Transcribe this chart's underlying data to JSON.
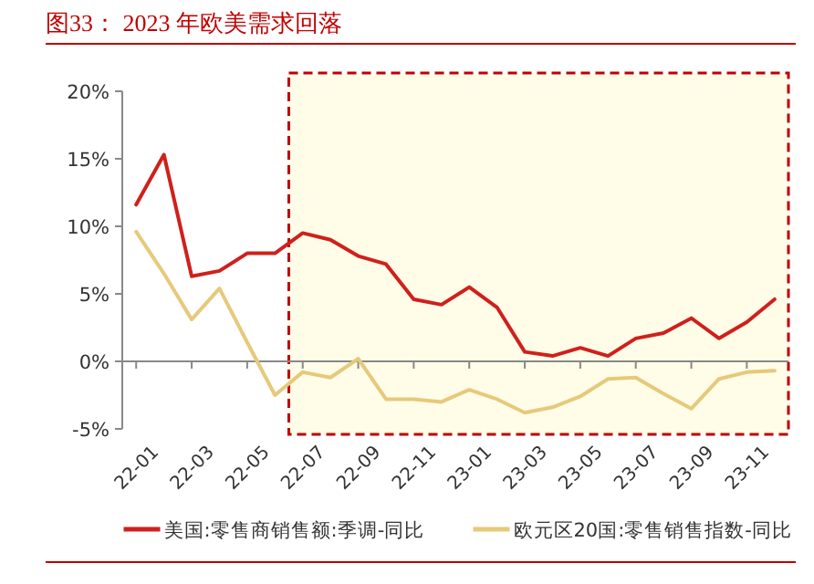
{
  "chart_data": {
    "type": "line",
    "title": "图33：  2023 年欧美需求回落",
    "x": [
      "2022-01",
      "2022-02",
      "2022-03",
      "2022-04",
      "2022-05",
      "2022-06",
      "2022-07",
      "2022-08",
      "2022-09",
      "2022-10",
      "2022-11",
      "2022-12",
      "2023-01",
      "2023-02",
      "2023-03",
      "2023-04",
      "2023-05",
      "2023-06",
      "2023-07",
      "2023-08",
      "2023-09",
      "2023-10",
      "2023-11",
      "2023-12"
    ],
    "xlim": [
      "2021-12-16",
      "2023-12-16"
    ],
    "xticks": [
      {
        "value": "2022-01",
        "label": "22-01"
      },
      {
        "value": "2022-03",
        "label": "22-03"
      },
      {
        "value": "2022-05",
        "label": "22-05"
      },
      {
        "value": "2022-07",
        "label": "22-07"
      },
      {
        "value": "2022-09",
        "label": "22-09"
      },
      {
        "value": "2022-11",
        "label": "22-11"
      },
      {
        "value": "2023-01",
        "label": "23-01"
      },
      {
        "value": "2023-03",
        "label": "23-03"
      },
      {
        "value": "2023-05",
        "label": "23-05"
      },
      {
        "value": "2023-07",
        "label": "23-07"
      },
      {
        "value": "2023-09",
        "label": "23-09"
      },
      {
        "value": "2023-11",
        "label": "23-11"
      }
    ],
    "ylim": [
      -5,
      20
    ],
    "yticks": [
      {
        "value": -5,
        "label": "-5%"
      },
      {
        "value": 0,
        "label": "0%"
      },
      {
        "value": 5,
        "label": "5%"
      },
      {
        "value": 10,
        "label": "10%"
      },
      {
        "value": 15,
        "label": "15%"
      },
      {
        "value": 20,
        "label": "20%"
      }
    ],
    "series": [
      {
        "name": "美国:零售商销售额:季调-同比",
        "color": "#d0201c",
        "values": [
          11.6,
          15.3,
          6.3,
          6.7,
          8.0,
          8.0,
          9.5,
          9.0,
          7.8,
          7.2,
          4.6,
          4.2,
          5.5,
          4.0,
          0.7,
          0.4,
          1.0,
          0.4,
          1.7,
          2.1,
          3.2,
          1.7,
          2.9,
          4.6
        ]
      },
      {
        "name": "欧元区20国:零售销售指数-同比",
        "color": "#e6c97a",
        "values": [
          9.6,
          6.5,
          3.1,
          5.4,
          1.4,
          -2.5,
          -0.8,
          -1.2,
          0.2,
          -2.8,
          -2.8,
          -3.0,
          -2.1,
          -2.8,
          -3.8,
          -3.4,
          -2.6,
          -1.3,
          -1.2,
          -2.4,
          -3.5,
          -1.3,
          -0.8,
          -0.7
        ]
      }
    ],
    "bands": [
      {
        "axis": "x",
        "from": "2022-06-16",
        "to": "2023-12-16",
        "color": "#fffde8"
      }
    ],
    "legend": "bottom"
  }
}
